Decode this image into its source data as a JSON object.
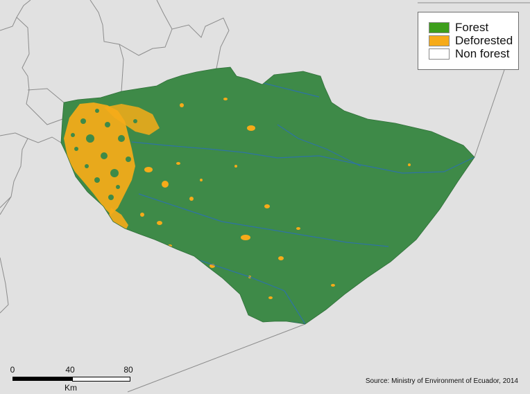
{
  "map": {
    "colors": {
      "background": "#e1e1e1",
      "forest": "#3e8a48",
      "deforested": "#f6ab19",
      "non_forest": "#ffffff",
      "water": "#2c6fb5",
      "boundary": "#8c8c8c"
    }
  },
  "legend": {
    "items": [
      {
        "label": "Forest",
        "color": "#3d9e1b"
      },
      {
        "label": "Deforested",
        "color": "#f6ab19"
      },
      {
        "label": "Non forest",
        "color": "#ffffff"
      }
    ]
  },
  "scalebar": {
    "ticks": [
      "0",
      "40",
      "80"
    ],
    "unit": "Km"
  },
  "source": "Source: Ministry of Environment of Ecuador, 2014"
}
